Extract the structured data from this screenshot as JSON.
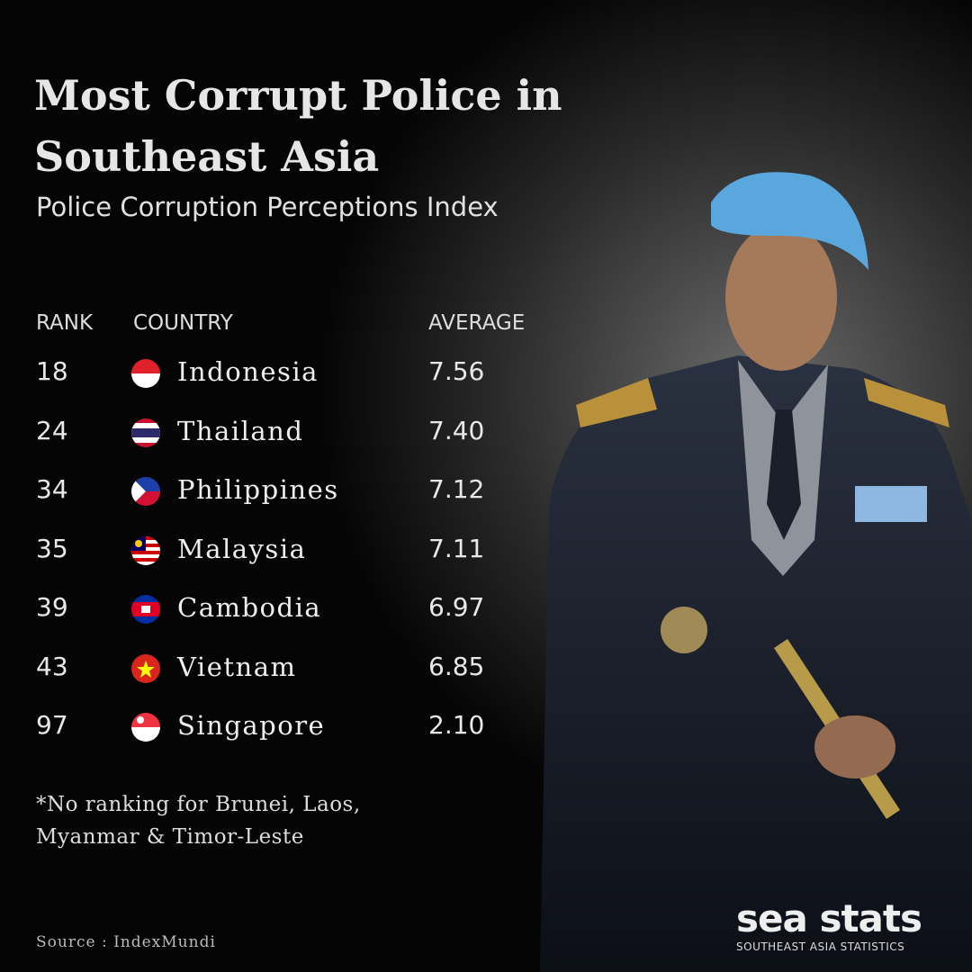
{
  "header": {
    "title": "Most Corrupt Police in Southeast Asia",
    "subtitle": "Police Corruption Perceptions Index"
  },
  "table": {
    "columns": [
      "RANK",
      "COUNTRY",
      "AVERAGE"
    ],
    "rows": [
      [
        "18",
        "Indonesia",
        "7.56"
      ],
      [
        "24",
        "Thailand",
        "7.40"
      ],
      [
        "34",
        "Philippines",
        "7.12"
      ],
      [
        "35",
        "Malaysia",
        "7.11"
      ],
      [
        "39",
        "Cambodia",
        "6.97"
      ],
      [
        "43",
        "Vietnam",
        "6.85"
      ],
      [
        "97",
        "Singapore",
        "2.10"
      ]
    ]
  },
  "footnote": "*No ranking for Brunei, Laos, Myanmar & Timor-Leste",
  "source": "Source : IndexMundi",
  "logo": {
    "name": "sea stats",
    "tagline": "SOUTHEAST ASIA STATISTICS"
  }
}
